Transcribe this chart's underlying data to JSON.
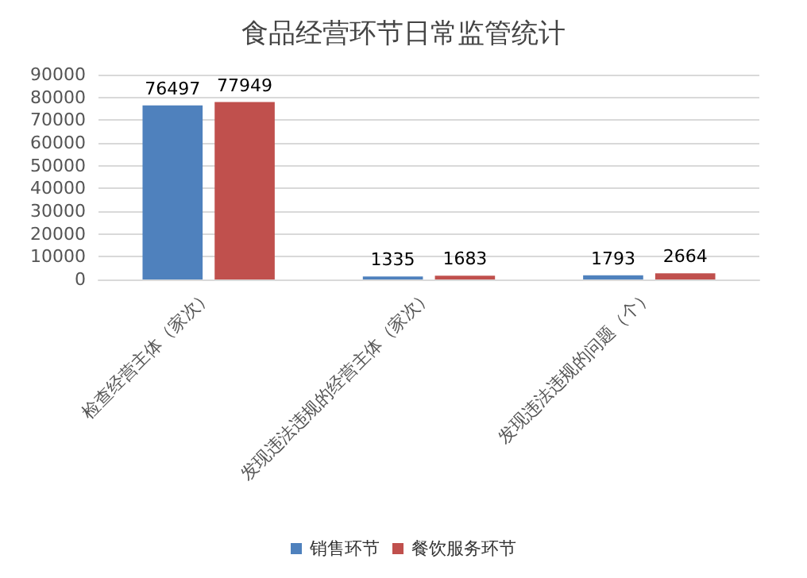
{
  "chart_data": {
    "type": "bar",
    "title": "食品经营环节日常监管统计",
    "categories": [
      "检查经营主体（家次）",
      "发现违法违规的经营主体（家次）",
      "发现违法违规的问题（个）"
    ],
    "series": [
      {
        "name": "销售环节",
        "color": "#4f81bd",
        "values": [
          76497,
          1335,
          1793
        ]
      },
      {
        "name": "餐饮服务环节",
        "color": "#c0504d",
        "values": [
          77949,
          1683,
          2664
        ]
      }
    ],
    "ylim": [
      0,
      90000
    ],
    "yticks": [
      0,
      10000,
      20000,
      30000,
      40000,
      50000,
      60000,
      70000,
      80000,
      90000
    ],
    "grid": "y",
    "legend": "bottom",
    "data_labels": true
  }
}
